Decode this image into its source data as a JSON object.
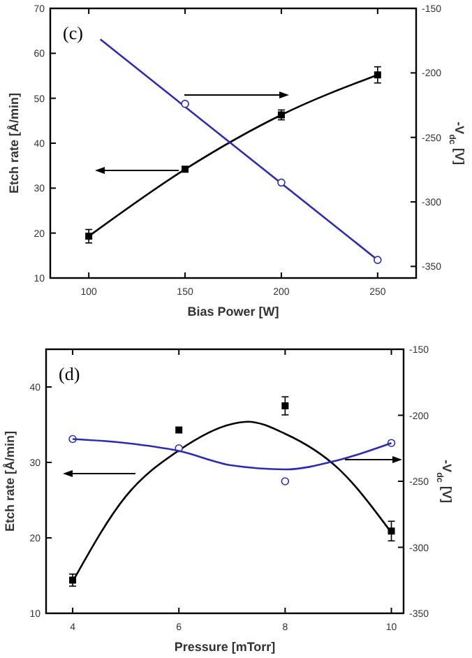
{
  "chart_data": [
    {
      "type": "line",
      "annotations": [
        "(c)"
      ],
      "xlabel": "Bias Power [W]",
      "ylabel": "Etch rate [Å/min]",
      "y2label": "-V$_{dc}$ [V]",
      "xlim": [
        80,
        270
      ],
      "xticks": [
        100,
        150,
        200,
        250
      ],
      "ylim": [
        10,
        70
      ],
      "yticks": [
        10,
        20,
        30,
        40,
        50,
        60,
        70
      ],
      "y2lim": [
        -359,
        -150
      ],
      "y2ticks": [
        -150,
        -200,
        -250,
        -300,
        -350
      ],
      "grid": false,
      "series": [
        {
          "color": "#000000",
          "marker": "square",
          "x": [
            100,
            150,
            200,
            250
          ],
          "values": [
            19.3,
            34.2,
            46.3,
            55.2
          ],
          "errors": [
            1.5,
            0.6,
            1.1,
            1.8
          ]
        },
        {
          "axis": "y2",
          "color": "#2b2bb5",
          "marker": "none",
          "x": [
            106,
            250
          ],
          "values": [
            -174,
            -345
          ]
        },
        {
          "type": "scatter",
          "axis": "y2",
          "color": "#2b2bb5",
          "marker": "circle",
          "x": [
            150,
            200,
            250
          ],
          "values": [
            -224,
            -285,
            -345
          ]
        }
      ]
    },
    {
      "type": "line",
      "annotations": [
        "(d)"
      ],
      "xlabel": "Pressure [mTorr]",
      "ylabel": "Etch rate [Å/min]",
      "y2label": "-V$_{dc}$ [V]",
      "xlim": [
        3.5,
        10.23
      ],
      "xticks": [
        4,
        6,
        8,
        10
      ],
      "ylim": [
        10,
        45
      ],
      "yticks": [
        10,
        20,
        30,
        40
      ],
      "y2lim": [
        -350,
        -150
      ],
      "y2ticks": [
        -150,
        -200,
        -250,
        -300,
        -350
      ],
      "grid": false,
      "series": [
        {
          "type": "scatter",
          "color": "#000000",
          "marker": "square",
          "x": [
            4,
            6,
            8,
            10
          ],
          "values": [
            14.4,
            34.3,
            37.5,
            20.9
          ],
          "errors": [
            0.8,
            null,
            1.2,
            1.3
          ]
        },
        {
          "color": "#000000",
          "marker": "none",
          "x": [
            4,
            5,
            6,
            7,
            7.3,
            8,
            9,
            10
          ],
          "values": [
            14.2,
            25.5,
            31.6,
            35.1,
            35.4,
            33.8,
            29.2,
            20.7
          ]
        },
        {
          "type": "scatter",
          "axis": "y2",
          "color": "#2b2bb5",
          "marker": "circle",
          "x": [
            4,
            6,
            8,
            10
          ],
          "values": [
            -218,
            -225,
            -250,
            -221
          ]
        },
        {
          "axis": "y2",
          "color": "#2b2bb5",
          "marker": "none",
          "x": [
            4,
            5,
            6,
            7,
            8,
            9,
            10
          ],
          "values": [
            -218,
            -221,
            -227,
            -238,
            -241,
            -234,
            -221
          ]
        }
      ]
    }
  ]
}
